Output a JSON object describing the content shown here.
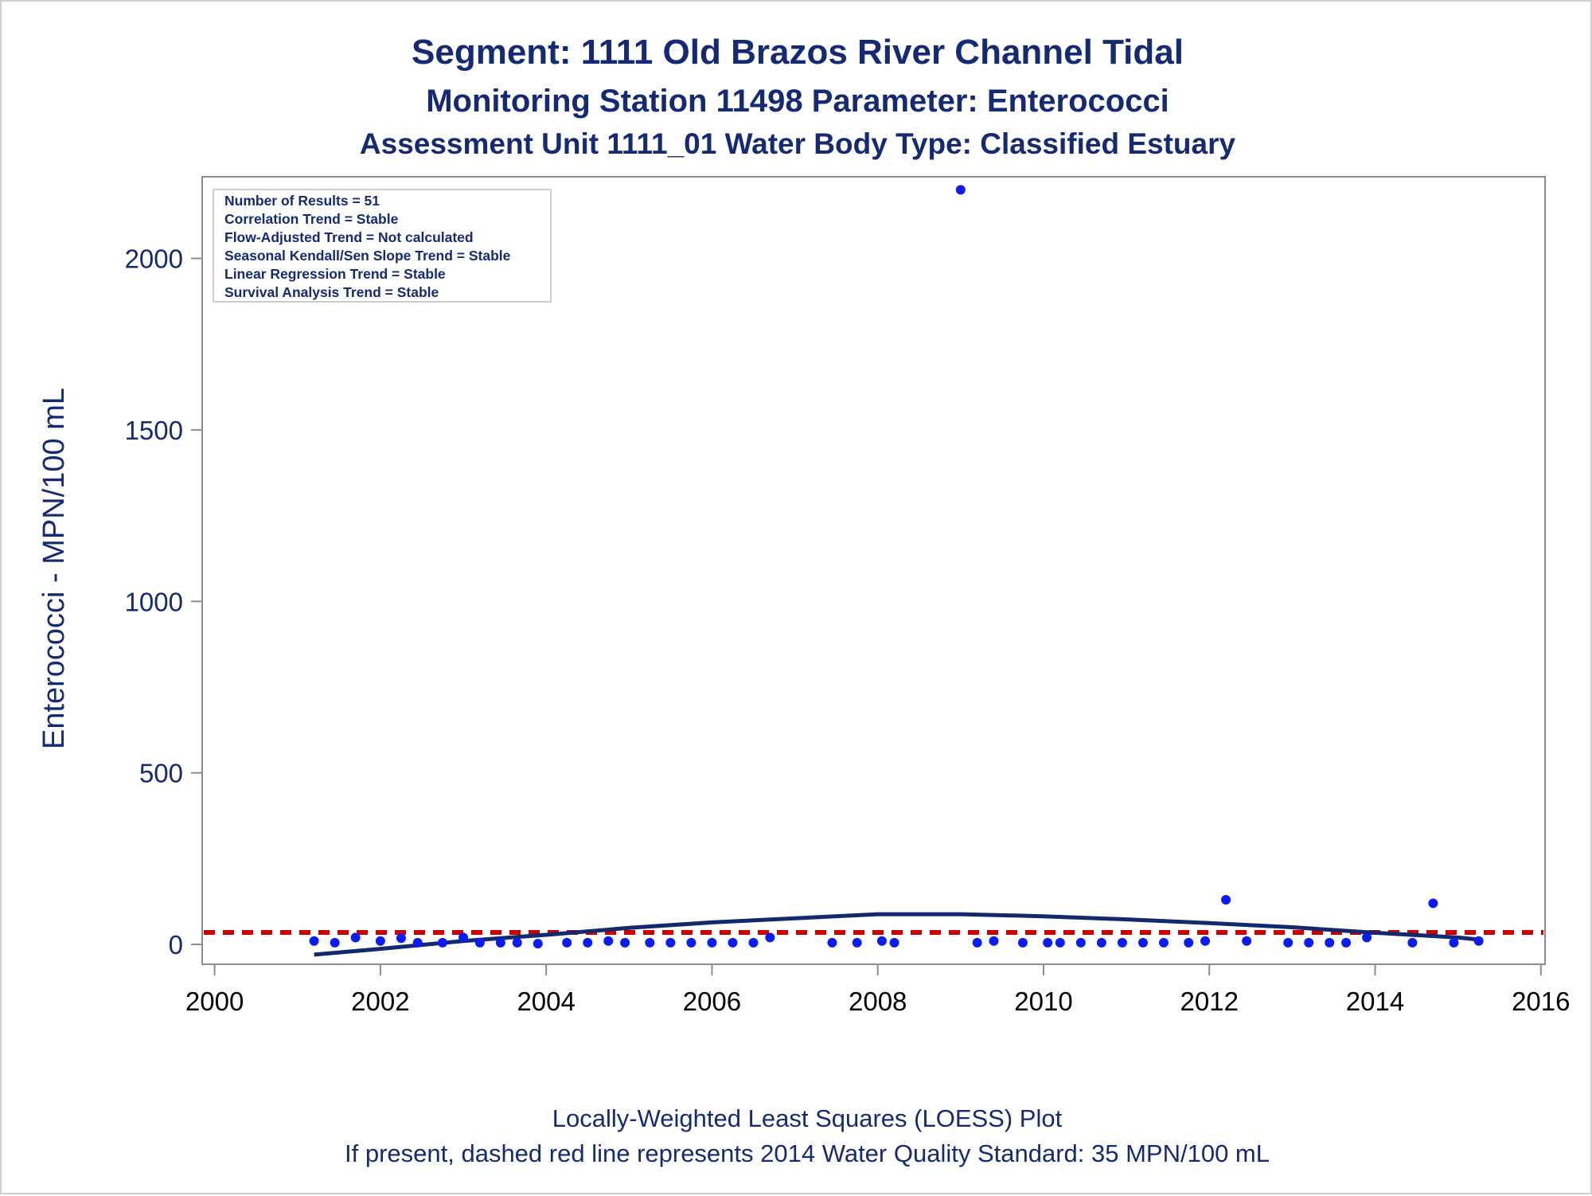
{
  "titles": {
    "line1": "Segment: 1111  Old Brazos River Channel Tidal",
    "line2": "Monitoring Station 11498 Parameter: Enterococci",
    "line3": "Assessment Unit 1111_01   Water Body Type: Classified Estuary"
  },
  "stats_box": {
    "lines": [
      "Number of Results = 51",
      "Correlation Trend = Stable",
      "Flow-Adjusted Trend = Not calculated",
      "Seasonal Kendall/Sen Slope Trend = Stable",
      "Linear Regression Trend = Stable",
      "Survival Analysis Trend = Stable"
    ]
  },
  "footnotes": {
    "line1": "Locally-Weighted Least Squares (LOESS) Plot",
    "line2": "If present, dashed red line represents 2014 Water Quality Standard: 35 MPN/100 mL"
  },
  "colors": {
    "points": "#0a1aff",
    "loess": "#13296e",
    "standard": "#cc0000",
    "text": "#152a74",
    "axis": "#8c8c8c"
  },
  "chart_data": {
    "type": "scatter",
    "title": "Segment: 1111  Old Brazos River Channel Tidal",
    "xlabel": "",
    "ylabel": "Enterococci - MPN/100 mL",
    "xlim": [
      1999.85,
      2016.05
    ],
    "ylim": [
      -58,
      2238
    ],
    "xticks": [
      2000,
      2002,
      2004,
      2006,
      2008,
      2010,
      2012,
      2014,
      2016
    ],
    "yticks": [
      0,
      500,
      1000,
      1500,
      2000
    ],
    "grid": false,
    "standard_line": {
      "y": 35,
      "style": "dashed"
    },
    "points": [
      {
        "x": 2001.2,
        "y": 10
      },
      {
        "x": 2001.45,
        "y": 5
      },
      {
        "x": 2001.7,
        "y": 20
      },
      {
        "x": 2002.0,
        "y": 10
      },
      {
        "x": 2002.25,
        "y": 18
      },
      {
        "x": 2002.45,
        "y": 5
      },
      {
        "x": 2002.75,
        "y": 5
      },
      {
        "x": 2003.0,
        "y": 20
      },
      {
        "x": 2003.2,
        "y": 5
      },
      {
        "x": 2003.45,
        "y": 5
      },
      {
        "x": 2003.65,
        "y": 5
      },
      {
        "x": 2003.9,
        "y": 2
      },
      {
        "x": 2004.25,
        "y": 5
      },
      {
        "x": 2004.5,
        "y": 5
      },
      {
        "x": 2004.75,
        "y": 10
      },
      {
        "x": 2004.95,
        "y": 5
      },
      {
        "x": 2005.25,
        "y": 5
      },
      {
        "x": 2005.5,
        "y": 5
      },
      {
        "x": 2005.75,
        "y": 5
      },
      {
        "x": 2006.0,
        "y": 5
      },
      {
        "x": 2006.25,
        "y": 5
      },
      {
        "x": 2006.5,
        "y": 5
      },
      {
        "x": 2006.7,
        "y": 20
      },
      {
        "x": 2007.45,
        "y": 5
      },
      {
        "x": 2007.75,
        "y": 5
      },
      {
        "x": 2008.05,
        "y": 10
      },
      {
        "x": 2008.2,
        "y": 5
      },
      {
        "x": 2009.0,
        "y": 2200
      },
      {
        "x": 2009.2,
        "y": 5
      },
      {
        "x": 2009.4,
        "y": 10
      },
      {
        "x": 2009.75,
        "y": 5
      },
      {
        "x": 2010.05,
        "y": 5
      },
      {
        "x": 2010.2,
        "y": 5
      },
      {
        "x": 2010.45,
        "y": 5
      },
      {
        "x": 2010.7,
        "y": 5
      },
      {
        "x": 2010.95,
        "y": 5
      },
      {
        "x": 2011.2,
        "y": 5
      },
      {
        "x": 2011.45,
        "y": 5
      },
      {
        "x": 2011.75,
        "y": 5
      },
      {
        "x": 2011.95,
        "y": 10
      },
      {
        "x": 2012.2,
        "y": 130
      },
      {
        "x": 2012.45,
        "y": 10
      },
      {
        "x": 2012.95,
        "y": 5
      },
      {
        "x": 2013.2,
        "y": 5
      },
      {
        "x": 2013.45,
        "y": 5
      },
      {
        "x": 2013.65,
        "y": 5
      },
      {
        "x": 2013.9,
        "y": 20
      },
      {
        "x": 2014.45,
        "y": 5
      },
      {
        "x": 2014.7,
        "y": 120
      },
      {
        "x": 2014.95,
        "y": 5
      },
      {
        "x": 2015.25,
        "y": 10
      }
    ],
    "loess": [
      {
        "x": 2001.2,
        "y": -30
      },
      {
        "x": 2002.0,
        "y": -13
      },
      {
        "x": 2003.0,
        "y": 10
      },
      {
        "x": 2004.0,
        "y": 28
      },
      {
        "x": 2005.0,
        "y": 48
      },
      {
        "x": 2006.0,
        "y": 64
      },
      {
        "x": 2007.0,
        "y": 76
      },
      {
        "x": 2008.0,
        "y": 88
      },
      {
        "x": 2009.0,
        "y": 88
      },
      {
        "x": 2010.0,
        "y": 82
      },
      {
        "x": 2011.0,
        "y": 73
      },
      {
        "x": 2012.0,
        "y": 62
      },
      {
        "x": 2013.0,
        "y": 50
      },
      {
        "x": 2014.0,
        "y": 34
      },
      {
        "x": 2015.0,
        "y": 20
      },
      {
        "x": 2015.25,
        "y": 14
      }
    ]
  }
}
